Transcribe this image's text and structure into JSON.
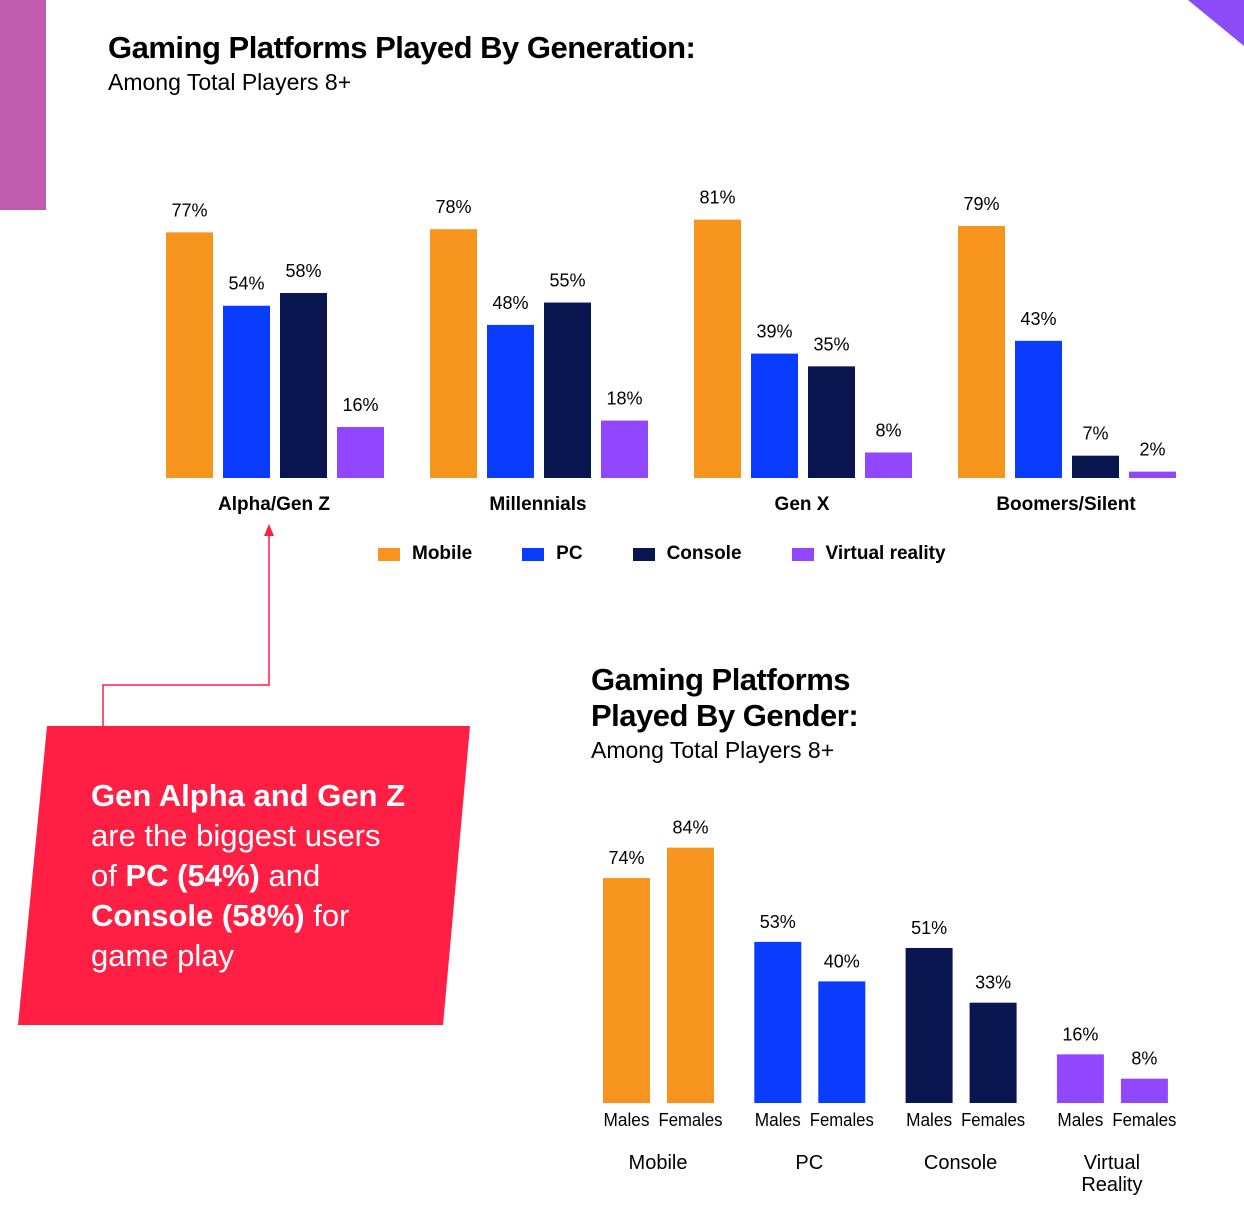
{
  "colors": {
    "Mobile": "#f7941d",
    "PC": "#0a3cff",
    "Console": "#0a1650",
    "Virtual reality": "#9146ff",
    "callout": "#ff1f45",
    "accent": "#c05bb0"
  },
  "chart_data": [
    {
      "type": "bar",
      "title": "Gaming Platforms Played By Generation:",
      "subtitle": "Among Total Players 8+",
      "categories": [
        "Alpha/Gen Z",
        "Millennials",
        "Gen X",
        "Boomers/Silent"
      ],
      "series": [
        {
          "name": "Mobile",
          "values": [
            77,
            78,
            81,
            79
          ]
        },
        {
          "name": "PC",
          "values": [
            54,
            48,
            39,
            43
          ]
        },
        {
          "name": "Console",
          "values": [
            58,
            55,
            35,
            7
          ]
        },
        {
          "name": "Virtual reality",
          "values": [
            16,
            18,
            8,
            2
          ]
        }
      ],
      "unit": "%",
      "legend": "bottom",
      "grid": false
    },
    {
      "type": "bar",
      "title": "Gaming Platforms Played By Gender:",
      "title_lines": [
        "Gaming Platforms",
        "Played By Gender:"
      ],
      "subtitle": "Among Total Players 8+",
      "categories": [
        "Mobile",
        "PC",
        "Console",
        "Virtual Reality"
      ],
      "category_lines": [
        [
          "Mobile"
        ],
        [
          "PC"
        ],
        [
          "Console"
        ],
        [
          "Virtual",
          "Reality"
        ]
      ],
      "subcategories": [
        "Males",
        "Females"
      ],
      "values": [
        [
          74,
          84
        ],
        [
          53,
          40
        ],
        [
          51,
          33
        ],
        [
          16,
          8
        ]
      ],
      "unit": "%",
      "grid": false
    }
  ],
  "callout": {
    "l1": "Gen Alpha and Gen Z",
    "l2": "are the biggest users",
    "l3a": "of ",
    "l3b": "PC (54%)",
    "l3c": " and",
    "l4a": "Console (58%)",
    "l4b": " for",
    "l5": "game play"
  }
}
